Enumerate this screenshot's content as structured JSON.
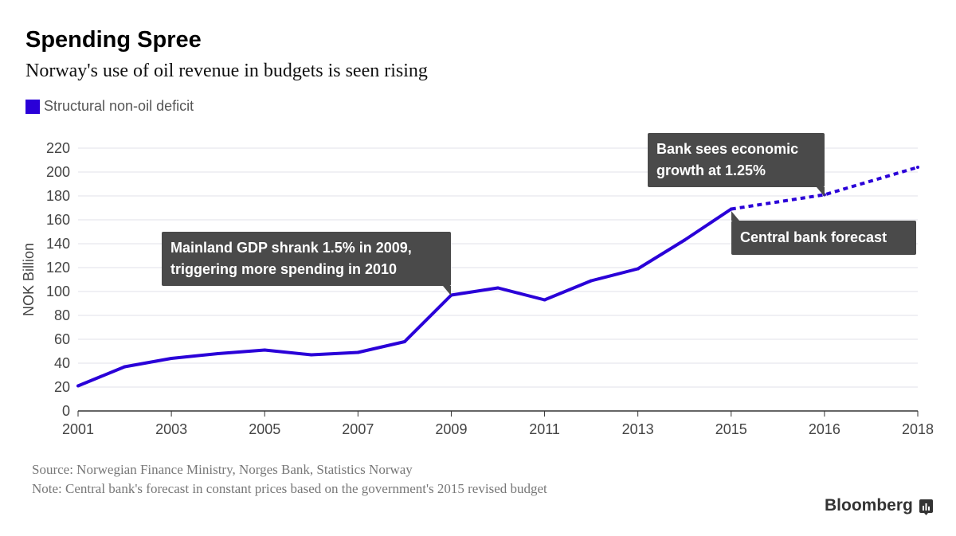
{
  "header": {
    "title": "Spending Spree",
    "subtitle": "Norway's use of oil revenue in budgets is seen rising"
  },
  "footer": {
    "source": "Source: Norwegian Finance Ministry, Norges Bank, Statistics Norway",
    "note": "Note: Central bank's forecast in constant prices based on the government's 2015 revised budget",
    "logo": "Bloomberg"
  },
  "chart_data": {
    "type": "line",
    "title": "Spending Spree",
    "subtitle": "Norway's use of oil revenue in budgets is seen rising",
    "xlabel": "",
    "ylabel": "NOK Billion",
    "ylim": [
      0,
      220
    ],
    "yticks": [
      0,
      20,
      40,
      60,
      80,
      100,
      120,
      140,
      160,
      180,
      200,
      220
    ],
    "xticks": [
      "2001",
      "2003",
      "2005",
      "2007",
      "2009",
      "2011",
      "2013",
      "2015",
      "2016",
      "2018"
    ],
    "grid": true,
    "legend": {
      "placement": "top-left",
      "entries": [
        "Structural non-oil deficit"
      ]
    },
    "colors": {
      "line": "#2a00d8",
      "annotation_bg": "#4a4a4a",
      "grid": "#e0e0e8"
    },
    "series": [
      {
        "name": "Structural non-oil deficit",
        "style": "solid",
        "x": [
          2001,
          2002,
          2003,
          2004,
          2005,
          2006,
          2007,
          2008,
          2009,
          2010,
          2011,
          2012,
          2013,
          2014,
          2015
        ],
        "values": [
          21,
          37,
          44,
          48,
          51,
          47,
          49,
          58,
          97,
          103,
          93,
          109,
          119,
          143,
          169
        ]
      },
      {
        "name": "Central bank forecast",
        "style": "dotted",
        "x": [
          2015,
          2016,
          2018
        ],
        "values": [
          169,
          181,
          204
        ]
      }
    ],
    "annotations": [
      {
        "text_line1": "Mainland GDP shrank 1.5% in 2009,",
        "text_line2": "triggering more spending in 2010",
        "x": 2009,
        "y": 97
      },
      {
        "text_line1": "Bank sees economic",
        "text_line2": "growth at 1.25%",
        "x": 2016,
        "y": 181
      },
      {
        "text_line1": "Central bank forecast",
        "x": 2015,
        "y": 169
      }
    ]
  }
}
